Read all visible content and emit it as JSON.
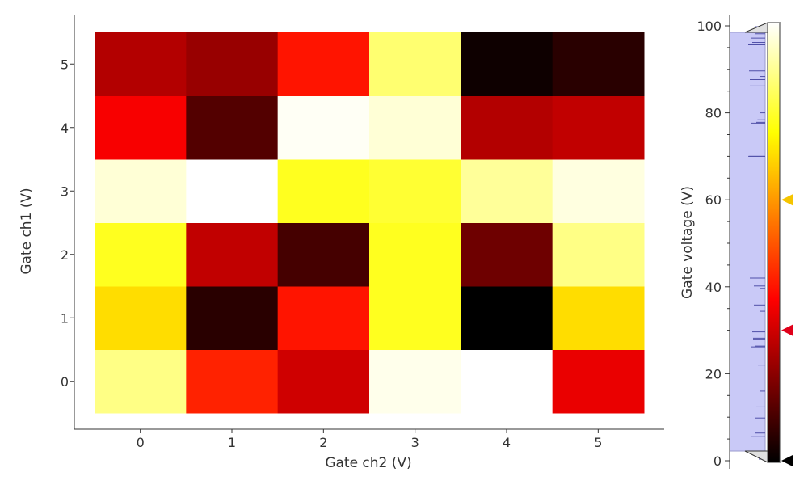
{
  "chart_data": {
    "type": "heatmap",
    "xlabel": "Gate ch2 (V)",
    "ylabel": "Gate ch1 (V)",
    "x": [
      0,
      1,
      2,
      3,
      4,
      5
    ],
    "y": [
      0,
      1,
      2,
      3,
      4,
      5
    ],
    "x_ticks": [
      "0",
      "1",
      "2",
      "3",
      "4",
      "5"
    ],
    "y_ticks": [
      "0",
      "1",
      "2",
      "3",
      "4",
      "5"
    ],
    "values": [
      [
        88,
        42,
        30,
        98,
        100,
        34
      ],
      [
        70,
        6,
        40,
        78,
        0,
        70
      ],
      [
        78,
        28,
        10,
        78,
        16,
        88
      ],
      [
        96,
        100,
        78,
        80,
        90,
        97
      ],
      [
        36,
        12,
        99,
        96,
        26,
        28
      ],
      [
        26,
        22,
        40,
        86,
        2,
        6
      ]
    ],
    "colormap": "hot",
    "colorbar": {
      "label": "Gate voltage (V)",
      "range": [
        0,
        100
      ],
      "ticks": [
        "0",
        "20",
        "40",
        "60",
        "80",
        "100"
      ],
      "markers": [
        {
          "value": 60,
          "color": "#f5c400"
        },
        {
          "value": 30,
          "color": "#e0001a"
        },
        {
          "value": 0,
          "color": "#000000"
        }
      ]
    }
  }
}
